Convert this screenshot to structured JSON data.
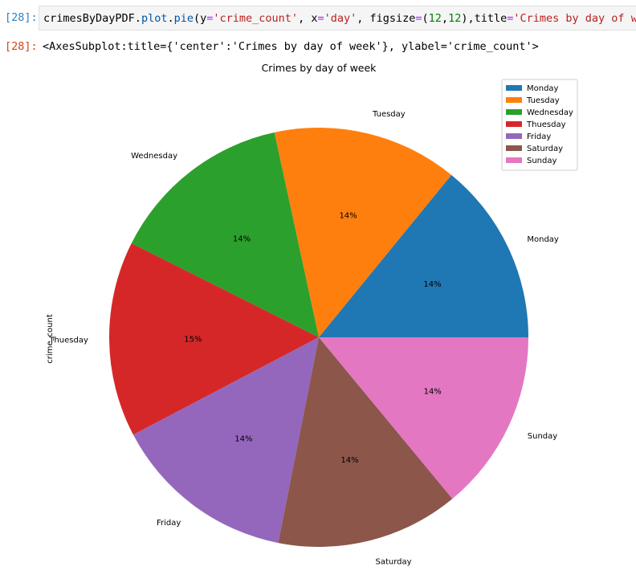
{
  "input_cell": {
    "prompt": "[28]:",
    "code_tokens": [
      {
        "t": "crimesByDayPDF",
        "c": "var"
      },
      {
        "t": ".",
        "c": "var"
      },
      {
        "t": "plot",
        "c": "attr"
      },
      {
        "t": ".",
        "c": "var"
      },
      {
        "t": "pie",
        "c": "attr"
      },
      {
        "t": "(y",
        "c": "var"
      },
      {
        "t": "=",
        "c": "op"
      },
      {
        "t": "'crime_count'",
        "c": "str"
      },
      {
        "t": ", x",
        "c": "var"
      },
      {
        "t": "=",
        "c": "op"
      },
      {
        "t": "'day'",
        "c": "str"
      },
      {
        "t": ", figsize",
        "c": "var"
      },
      {
        "t": "=",
        "c": "op"
      },
      {
        "t": "(",
        "c": "var"
      },
      {
        "t": "12",
        "c": "num"
      },
      {
        "t": ",",
        "c": "var"
      },
      {
        "t": "12",
        "c": "num"
      },
      {
        "t": "),title",
        "c": "var"
      },
      {
        "t": "=",
        "c": "op"
      },
      {
        "t": "'Crimes by day of week",
        "c": "str"
      }
    ]
  },
  "output_cell": {
    "prompt": "[28]:",
    "text": "<AxesSubplot:title={'center':'Crimes by day of week'}, ylabel='crime_count'>"
  },
  "chart_data": {
    "type": "pie",
    "title": "Crimes by day of week",
    "ylabel": "crime_count",
    "legend_position": "top-right",
    "start_angle_deg": 0,
    "direction": "counterclockwise",
    "slices": [
      {
        "label": "Monday",
        "value": 14.1,
        "pct_label": "14%",
        "color": "#1f77b4"
      },
      {
        "label": "Tuesday",
        "value": 14.3,
        "pct_label": "14%",
        "color": "#ff7f0e"
      },
      {
        "label": "Wednesday",
        "value": 14.2,
        "pct_label": "14%",
        "color": "#2ca02c"
      },
      {
        "label": "Thuesday",
        "value": 15.1,
        "pct_label": "15%",
        "color": "#d62728"
      },
      {
        "label": "Friday",
        "value": 14.2,
        "pct_label": "14%",
        "color": "#9467bd"
      },
      {
        "label": "Saturday",
        "value": 14.1,
        "pct_label": "14%",
        "color": "#8c564b"
      },
      {
        "label": "Sunday",
        "value": 14.0,
        "pct_label": "14%",
        "color": "#e377c2"
      }
    ]
  }
}
